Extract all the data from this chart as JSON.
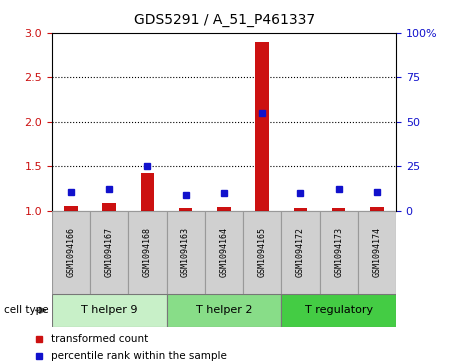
{
  "title": "GDS5291 / A_51_P461337",
  "samples": [
    "GSM1094166",
    "GSM1094167",
    "GSM1094168",
    "GSM1094163",
    "GSM1094164",
    "GSM1094165",
    "GSM1094172",
    "GSM1094173",
    "GSM1094174"
  ],
  "transformed_counts": [
    1.05,
    1.08,
    1.42,
    1.03,
    1.04,
    2.9,
    1.03,
    1.03,
    1.04
  ],
  "percentile_ranks": [
    10.5,
    12.0,
    25.0,
    9.0,
    10.0,
    55.0,
    10.0,
    12.0,
    10.5
  ],
  "cell_types": [
    {
      "label": "T helper 9",
      "start": 0,
      "end": 3,
      "color": "#c8f0c8"
    },
    {
      "label": "T helper 2",
      "start": 3,
      "end": 6,
      "color": "#88dd88"
    },
    {
      "label": "T regulatory",
      "start": 6,
      "end": 9,
      "color": "#44cc44"
    }
  ],
  "ylim_left": [
    1.0,
    3.0
  ],
  "ylim_right": [
    0,
    100
  ],
  "yticks_left": [
    1.0,
    1.5,
    2.0,
    2.5,
    3.0
  ],
  "yticks_right": [
    0,
    25,
    50,
    75,
    100
  ],
  "bar_color": "#cc1111",
  "dot_color": "#1111cc",
  "sample_box_color": "#d0d0d0",
  "sample_box_edge": "#999999",
  "grid_color": "#000000",
  "title_fontsize": 10,
  "tick_fontsize": 8,
  "sample_fontsize": 6,
  "celltype_fontsize": 8,
  "legend_fontsize": 7.5,
  "bar_width": 0.35,
  "base_value": 1.0,
  "dot_size": 5
}
